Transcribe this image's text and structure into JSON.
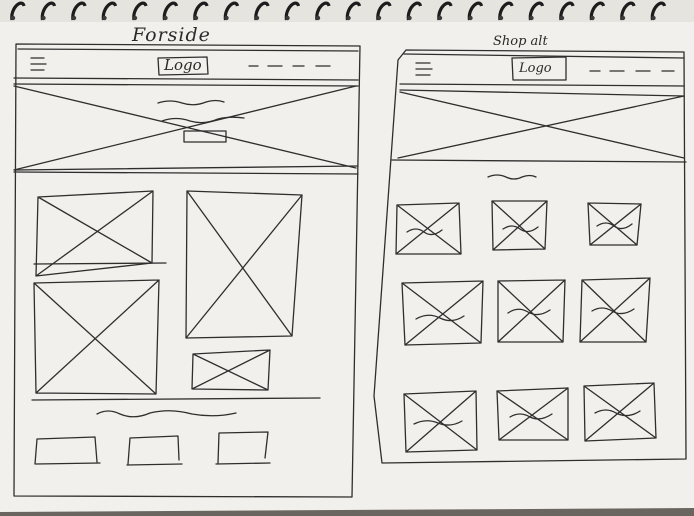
{
  "sketch": {
    "left_page": {
      "title": "Forside",
      "logo_text": "Logo"
    },
    "right_page": {
      "title": "Shop alt",
      "logo_text": "Logo"
    }
  },
  "colors": {
    "paper": "#f1f0ec",
    "ink": "#2e2e2e",
    "spiral": "#1c1c1c",
    "background": "#6b6560"
  }
}
